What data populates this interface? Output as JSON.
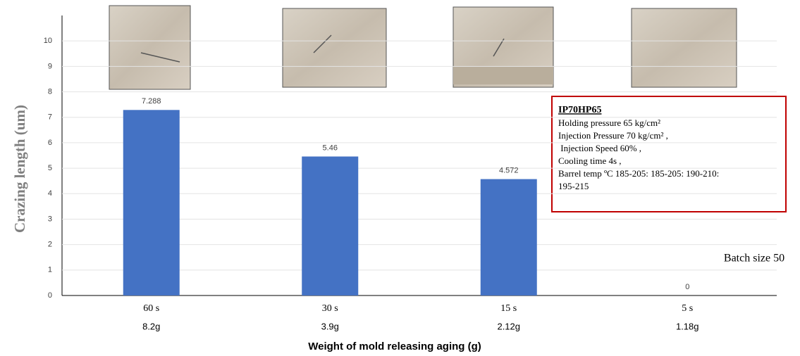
{
  "chart_data": {
    "type": "bar",
    "y_axis_label": "Crazing length (um)",
    "x_axis_label": "Weight of mold releasing aging (g)",
    "categories": [
      "60 s",
      "30 s",
      "15 s",
      "5 s"
    ],
    "weights": [
      "8.2g",
      "3.9g",
      "2.12g",
      "1.18g"
    ],
    "values": [
      7.288,
      5.46,
      4.572,
      0
    ],
    "color": "#4472c4",
    "ylim": [
      0,
      11
    ],
    "yticks": [
      0,
      1,
      2,
      3,
      4,
      5,
      6,
      7,
      8,
      9,
      10
    ],
    "grid": true,
    "annotation": {
      "title": "IP70HP65",
      "lines": [
        "Holding pressure 65 kg/cm²",
        "Injection Pressure 70 kg/cm² ,",
        " Injection Speed 60% ,",
        "Cooling time 4s ,",
        "Barrel temp ºC 185-205: 185-205: 190-210:",
        "195-215"
      ]
    },
    "note": "Batch size 50"
  }
}
